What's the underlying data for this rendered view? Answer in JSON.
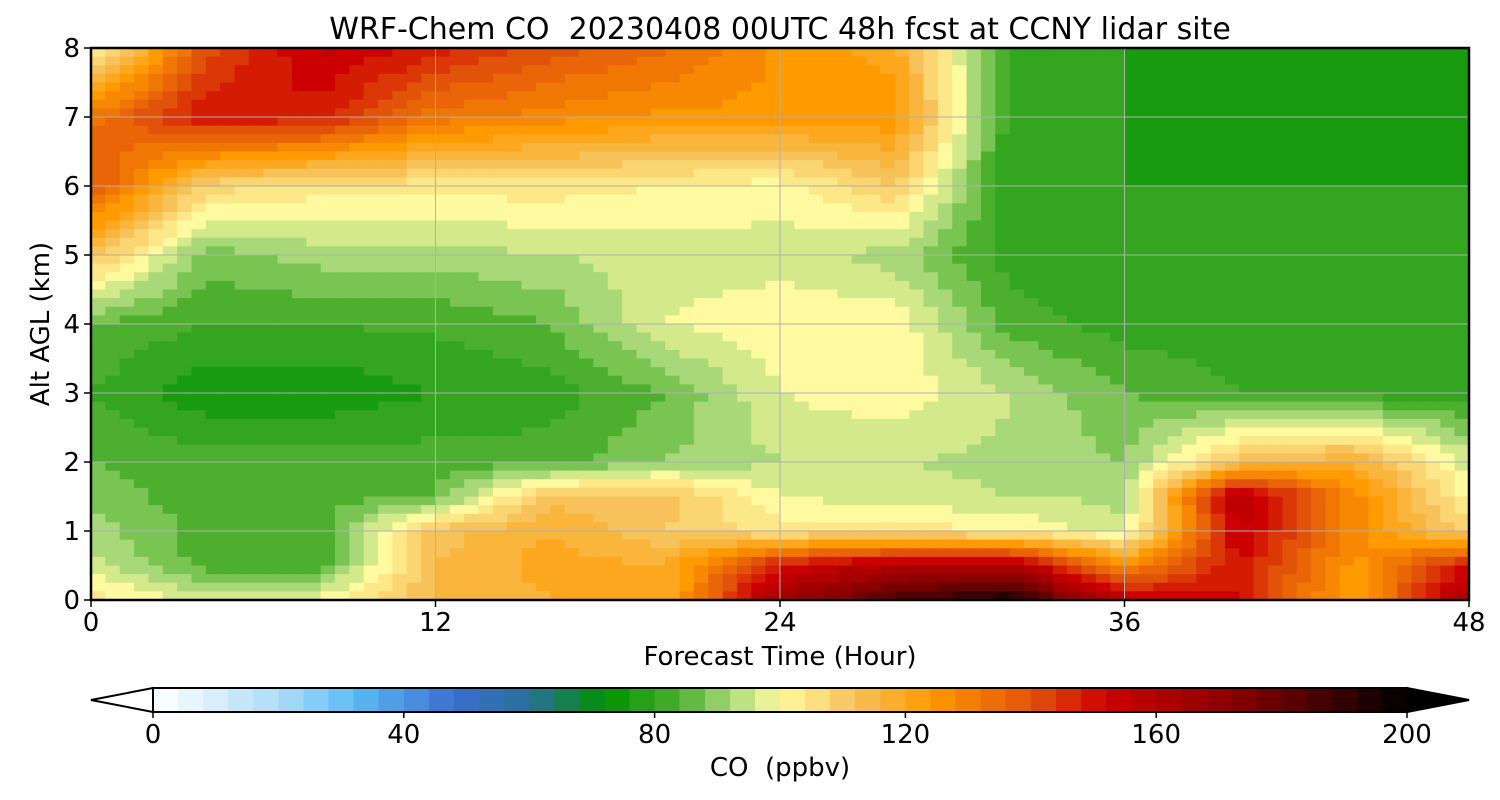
{
  "chart_data": {
    "type": "heatmap",
    "title": "WRF-Chem CO  20230408 00UTC 48h fcst at CCNY lidar site",
    "xlabel": "Forecast Time (Hour)",
    "ylabel": "Alt AGL (km)",
    "xlim": [
      0,
      48
    ],
    "ylim": [
      0,
      8
    ],
    "xticks": [
      0,
      12,
      24,
      36,
      48
    ],
    "yticks": [
      0,
      1,
      2,
      3,
      4,
      5,
      6,
      7,
      8
    ],
    "grid": true,
    "colorbar": {
      "label": "CO  (ppbv)",
      "min": 0,
      "max": 200,
      "ticks": [
        0,
        40,
        80,
        120,
        160,
        200
      ],
      "extend": "both",
      "orientation": "horizontal",
      "colors": [
        {
          "v": 0,
          "c": "#ffffff"
        },
        {
          "v": 20,
          "c": "#aedcf7"
        },
        {
          "v": 32,
          "c": "#5bbcf5"
        },
        {
          "v": 48,
          "c": "#3b6fcf"
        },
        {
          "v": 60,
          "c": "#2a6f9a"
        },
        {
          "v": 72,
          "c": "#009100"
        },
        {
          "v": 84,
          "c": "#4caf2e"
        },
        {
          "v": 92,
          "c": "#a8d878"
        },
        {
          "v": 100,
          "c": "#fffaa0"
        },
        {
          "v": 112,
          "c": "#f7c25a"
        },
        {
          "v": 124,
          "c": "#ff9a00"
        },
        {
          "v": 140,
          "c": "#e2530a"
        },
        {
          "v": 152,
          "c": "#cc0000"
        },
        {
          "v": 172,
          "c": "#8a0000"
        },
        {
          "v": 200,
          "c": "#000000"
        }
      ]
    },
    "x_hours": [
      0,
      4,
      8,
      12,
      16,
      20,
      24,
      28,
      32,
      36,
      40,
      44,
      48
    ],
    "y_km": [
      0,
      0.5,
      1,
      1.5,
      2,
      3,
      4,
      5,
      6,
      7,
      8
    ],
    "values_ppbv": [
      [
        104,
        96,
        100,
        114,
        118,
        118,
        165,
        185,
        195,
        155,
        150,
        120,
        165
      ],
      [
        96,
        84,
        84,
        114,
        120,
        118,
        150,
        160,
        160,
        128,
        150,
        124,
        150
      ],
      [
        92,
        84,
        84,
        112,
        118,
        110,
        104,
        104,
        102,
        95,
        155,
        128,
        108
      ],
      [
        88,
        84,
        84,
        86,
        112,
        112,
        98,
        96,
        94,
        93,
        160,
        128,
        100
      ],
      [
        86,
        84,
        84,
        84,
        84,
        90,
        94,
        94,
        93,
        90,
        112,
        118,
        96
      ],
      [
        82,
        75,
        75,
        78,
        80,
        86,
        98,
        101,
        94,
        86,
        82,
        80,
        80
      ],
      [
        86,
        82,
        82,
        83,
        86,
        98,
        101,
        101,
        84,
        80,
        80,
        80,
        80
      ],
      [
        112,
        88,
        92,
        92,
        94,
        96,
        96,
        92,
        80,
        80,
        80,
        80,
        80
      ],
      [
        140,
        108,
        104,
        104,
        104,
        102,
        100,
        110,
        78,
        78,
        78,
        78,
        78
      ],
      [
        132,
        150,
        148,
        132,
        128,
        125,
        125,
        125,
        80,
        78,
        76,
        76,
        78
      ],
      [
        98,
        140,
        155,
        148,
        140,
        135,
        125,
        120,
        80,
        78,
        76,
        76,
        78
      ]
    ]
  }
}
